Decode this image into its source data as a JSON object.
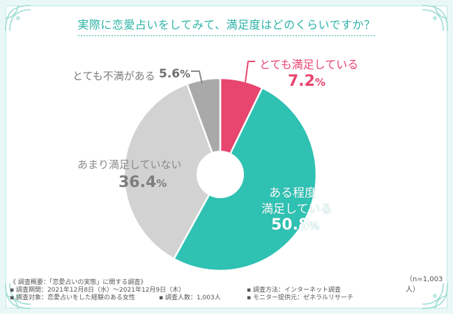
{
  "title": "実際に恋愛占いをしてみて、満足度はどのくらいですか？",
  "chart_data": {
    "type": "pie",
    "style": "donut",
    "categories": [
      "とても満足している",
      "ある程度満足している",
      "あまり満足していない",
      "とても不満がある"
    ],
    "values": [
      7.2,
      50.8,
      36.4,
      5.6
    ],
    "colors": [
      "#e8456f",
      "#2fc1b2",
      "#d2d2d2",
      "#a9a9a9"
    ],
    "labels": {
      "very": {
        "text": "とても満足している",
        "value": "7.2",
        "unit": "%"
      },
      "somewhat": {
        "line1": "ある程度",
        "line2": "満足している",
        "value": "50.8",
        "unit": "%"
      },
      "not": {
        "text": "あまり満足していない",
        "value": "36.4",
        "unit": "%"
      },
      "dissatisfied": {
        "text": "とても不満がある",
        "value": "5.6",
        "unit": "%"
      }
    }
  },
  "sample_size": "（n=1,003人）",
  "notes": {
    "overview": "《 調査概要：「恋愛占いの実態」に関する調査》",
    "period": "▪ 調査期間：2021年12月8日（水）〜2021年12月9日（木）",
    "method": "▪ 調査方法：インターネット調査",
    "target": "▪ 調査対象：恋愛占いをした経験のある女性",
    "count": "▪ 調査人数：1,003人",
    "provider": "▪ モニター提供元：ゼネラルリサーチ"
  }
}
